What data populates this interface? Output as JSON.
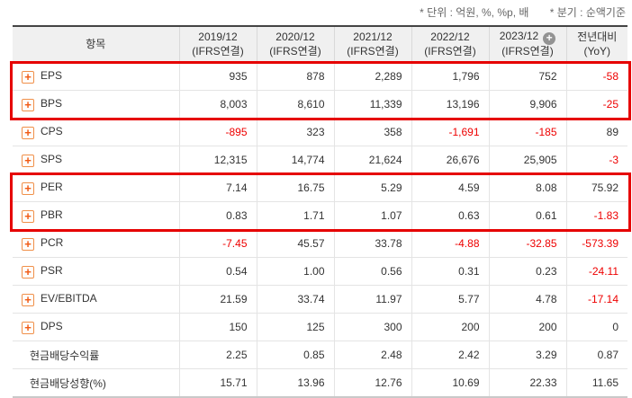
{
  "notes": {
    "unit": "* 단위 : 억원, %, %p, 배",
    "basis": "* 분기 : 순액기준"
  },
  "table": {
    "item_header": "항목",
    "columns": [
      {
        "line1": "2019/12",
        "line2": "(IFRS연결)"
      },
      {
        "line1": "2020/12",
        "line2": "(IFRS연결)"
      },
      {
        "line1": "2021/12",
        "line2": "(IFRS연결)"
      },
      {
        "line1": "2022/12",
        "line2": "(IFRS연결)"
      },
      {
        "line1": "2023/12",
        "line2": "(IFRS연결)",
        "has_add_icon": true
      },
      {
        "line1": "전년대비",
        "line2": "(YoY)"
      }
    ],
    "rows": [
      {
        "label": "EPS",
        "expandable": true,
        "values": [
          "935",
          "878",
          "2,289",
          "1,796",
          "752",
          "-58"
        ]
      },
      {
        "label": "BPS",
        "expandable": true,
        "values": [
          "8,003",
          "8,610",
          "11,339",
          "13,196",
          "9,906",
          "-25"
        ]
      },
      {
        "label": "CPS",
        "expandable": true,
        "values": [
          "-895",
          "323",
          "358",
          "-1,691",
          "-185",
          "89"
        ]
      },
      {
        "label": "SPS",
        "expandable": true,
        "values": [
          "12,315",
          "14,774",
          "21,624",
          "26,676",
          "25,905",
          "-3"
        ]
      },
      {
        "label": "PER",
        "expandable": true,
        "values": [
          "7.14",
          "16.75",
          "5.29",
          "4.59",
          "8.08",
          "75.92"
        ]
      },
      {
        "label": "PBR",
        "expandable": true,
        "values": [
          "0.83",
          "1.71",
          "1.07",
          "0.63",
          "0.61",
          "-1.83"
        ]
      },
      {
        "label": "PCR",
        "expandable": true,
        "values": [
          "-7.45",
          "45.57",
          "33.78",
          "-4.88",
          "-32.85",
          "-573.39"
        ]
      },
      {
        "label": "PSR",
        "expandable": true,
        "values": [
          "0.54",
          "1.00",
          "0.56",
          "0.31",
          "0.23",
          "-24.11"
        ]
      },
      {
        "label": "EV/EBITDA",
        "expandable": true,
        "values": [
          "21.59",
          "33.74",
          "11.97",
          "5.77",
          "4.78",
          "-17.14"
        ]
      },
      {
        "label": "DPS",
        "expandable": true,
        "values": [
          "150",
          "125",
          "300",
          "200",
          "200",
          "0"
        ]
      },
      {
        "label": "현금배당수익률",
        "expandable": false,
        "values": [
          "2.25",
          "0.85",
          "2.48",
          "2.42",
          "3.29",
          "0.87"
        ]
      },
      {
        "label": "현금배당성향(%)",
        "expandable": false,
        "values": [
          "15.71",
          "13.96",
          "12.76",
          "10.69",
          "22.33",
          "11.65"
        ]
      }
    ],
    "highlight_groups": [
      [
        0,
        1
      ],
      [
        4,
        5
      ]
    ]
  },
  "colors": {
    "negative_value": "#ee0000",
    "highlight_border": "#e60000",
    "expand_icon_orange": "#f05a14",
    "header_background": "#f0f0f0"
  }
}
